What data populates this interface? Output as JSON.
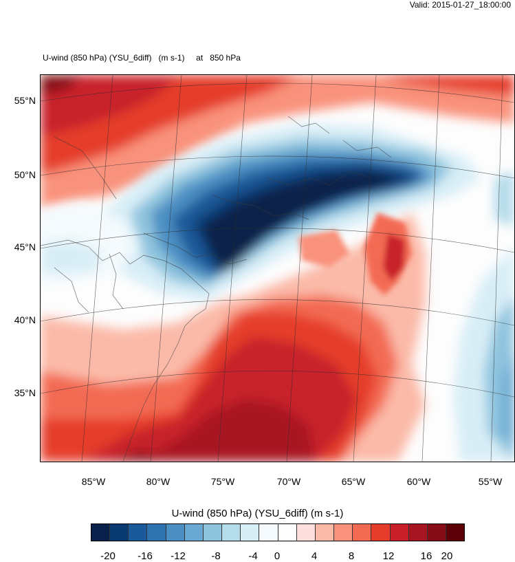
{
  "header": {
    "valid": "Valid: 2015-01-27_18:00:00"
  },
  "map": {
    "title": "U-wind (850 hPa) (YSU_6diff)   (m s-1)     at   850 hPa",
    "lat_labels": [
      "55°N",
      "50°N",
      "45°N",
      "40°N",
      "35°N"
    ],
    "lon_labels": [
      "85°W",
      "80°W",
      "75°W",
      "70°W",
      "65°W",
      "60°W",
      "55°W"
    ]
  },
  "colorbar": {
    "title": "U-wind (850 hPa) (YSU_6diff)  (m s-1)",
    "labels": [
      "-20",
      "-16",
      "-12",
      "-8",
      "-4",
      "0",
      "4",
      "8",
      "12",
      "16",
      "20"
    ],
    "colors": [
      "#08204a",
      "#0a3a72",
      "#1b5a9a",
      "#2f72b0",
      "#4b8fc2",
      "#6aa9d2",
      "#8fc4de",
      "#b5dceb",
      "#d8eef7",
      "#f4fafd",
      "#fdfdfd",
      "#fde0dd",
      "#fbbaa8",
      "#f9927c",
      "#f36a52",
      "#e53c2c",
      "#c8202a",
      "#a81522",
      "#860c16",
      "#5c0008"
    ]
  }
}
